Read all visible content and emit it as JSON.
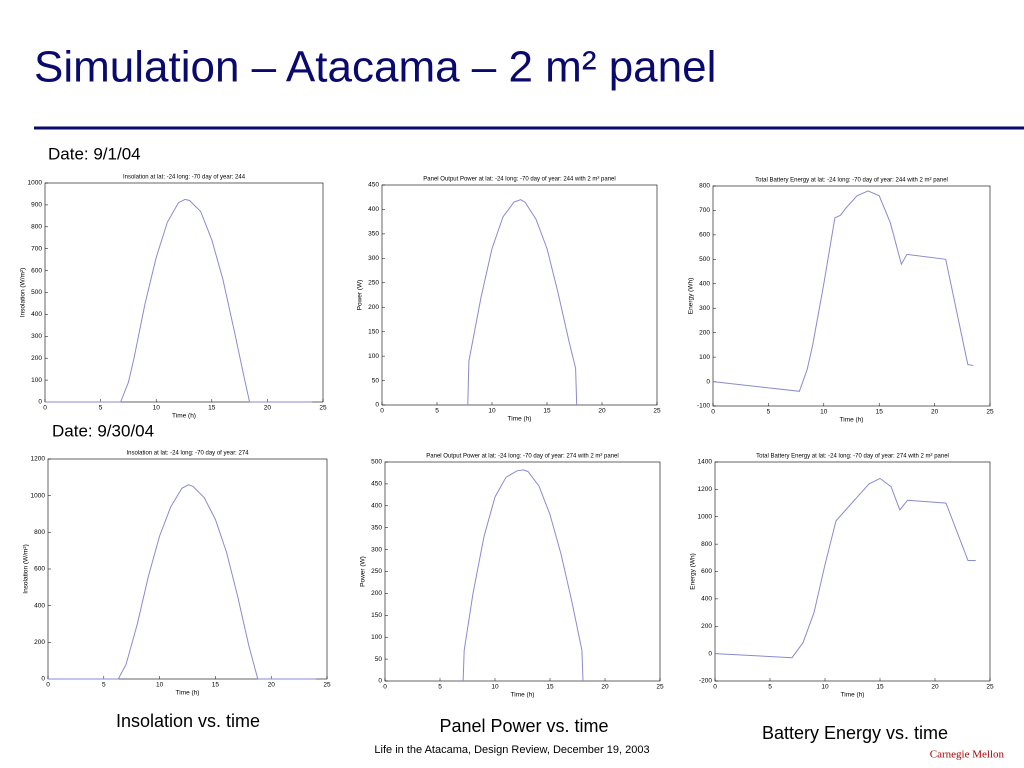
{
  "slide": {
    "title": "Simulation – Atacama – 2 m² panel",
    "dates": [
      "Date: 9/1/04",
      "Date: 9/30/04"
    ],
    "captions": [
      "Insolation vs. time",
      "Panel Power vs. time",
      "Battery Energy vs. time"
    ],
    "footer": "Life in the Atacama, Design Review, December 19, 2003",
    "logo": "Carnegie Mellon"
  },
  "chart_data": [
    {
      "type": "line",
      "title": "Insolation at lat: -24 long: -70 day of year: 244",
      "x_label": "Time (h)",
      "y_label": "Insolation (W/m²)",
      "xlim": [
        0,
        25
      ],
      "xticks": [
        0,
        5,
        10,
        15,
        20,
        25
      ],
      "ylim": [
        0,
        1000
      ],
      "yticks": [
        0,
        100,
        200,
        300,
        400,
        500,
        600,
        700,
        800,
        900,
        1000
      ],
      "series": [
        {
          "color": "#8a8ad0",
          "x": [
            0,
            6.8,
            7.5,
            8,
            9,
            10,
            11,
            12,
            12.6,
            13,
            14,
            15,
            16,
            17,
            18,
            18.4,
            24
          ],
          "values": [
            0,
            0,
            90,
            200,
            450,
            660,
            820,
            910,
            925,
            920,
            870,
            740,
            560,
            330,
            90,
            0,
            0
          ]
        }
      ]
    },
    {
      "type": "line",
      "title": "Panel Output Power at lat: -24 long: -70 day of year: 244 with 2 m² panel",
      "x_label": "Time (h)",
      "y_label": "Power (W)",
      "xlim": [
        0,
        25
      ],
      "xticks": [
        0,
        5,
        10,
        15,
        20,
        25
      ],
      "ylim": [
        0,
        450
      ],
      "yticks": [
        0,
        50,
        100,
        150,
        200,
        250,
        300,
        350,
        400,
        450
      ],
      "series": [
        {
          "color": "#8a8ad0",
          "x": [
            7.8,
            7.9,
            9,
            10,
            11,
            12,
            12.6,
            13,
            14,
            15,
            16,
            17,
            17.6,
            17.7
          ],
          "values": [
            0,
            90,
            220,
            320,
            385,
            415,
            420,
            415,
            380,
            320,
            230,
            130,
            75,
            0
          ]
        }
      ]
    },
    {
      "type": "line",
      "title": "Total Battery Energy at lat: -24 long: -70 day of year: 244 with 2 m² panel",
      "x_label": "Time (h)",
      "y_label": "Energy (Wh)",
      "xlim": [
        0,
        25
      ],
      "xticks": [
        0,
        5,
        10,
        15,
        20,
        25
      ],
      "ylim": [
        -100,
        800
      ],
      "yticks": [
        -100,
        0,
        100,
        200,
        300,
        400,
        500,
        600,
        700,
        800
      ],
      "series": [
        {
          "color": "#8a8ad0",
          "x": [
            0,
            7.8,
            8.5,
            9,
            10,
            11,
            11.5,
            12,
            13,
            14,
            15,
            16,
            17,
            17.5,
            21,
            23,
            23.5
          ],
          "values": [
            0,
            -40,
            50,
            150,
            400,
            670,
            680,
            710,
            760,
            780,
            760,
            650,
            480,
            520,
            500,
            70,
            65
          ]
        }
      ]
    },
    {
      "type": "line",
      "title": "Insolation at lat: -24 long: -70 day of year: 274",
      "x_label": "Time (h)",
      "y_label": "Insolation (W/m²)",
      "xlim": [
        0,
        25
      ],
      "xticks": [
        0,
        5,
        10,
        15,
        20,
        25
      ],
      "ylim": [
        0,
        1200
      ],
      "yticks": [
        0,
        200,
        400,
        600,
        800,
        1000,
        1200
      ],
      "series": [
        {
          "color": "#8a8ad0",
          "x": [
            0,
            6.3,
            7,
            8,
            9,
            10,
            11,
            12,
            12.6,
            13,
            14,
            15,
            16,
            17,
            18,
            18.8,
            24
          ],
          "values": [
            0,
            0,
            80,
            300,
            560,
            780,
            940,
            1040,
            1060,
            1050,
            990,
            870,
            690,
            450,
            180,
            0,
            0
          ]
        }
      ]
    },
    {
      "type": "line",
      "title": "Panel Output Power at lat: -24 long: -70 day of year: 274 with 2 m² panel",
      "x_label": "Time (h)",
      "y_label": "Power (W)",
      "xlim": [
        0,
        25
      ],
      "xticks": [
        0,
        5,
        10,
        15,
        20,
        25
      ],
      "ylim": [
        0,
        500
      ],
      "yticks": [
        0,
        50,
        100,
        150,
        200,
        250,
        300,
        350,
        400,
        450,
        500
      ],
      "series": [
        {
          "color": "#8a8ad0",
          "x": [
            7.1,
            7.2,
            8,
            9,
            10,
            11,
            12,
            12.6,
            13,
            14,
            15,
            16,
            17,
            17.9,
            18
          ],
          "values": [
            0,
            70,
            200,
            330,
            420,
            465,
            480,
            482,
            478,
            445,
            380,
            290,
            180,
            70,
            0
          ]
        }
      ]
    },
    {
      "type": "line",
      "title": "Total Battery Energy at lat: -24 long: -70 day of year: 274 with 2 m² panel",
      "x_label": "Time (h)",
      "y_label": "Energy (Wh)",
      "xlim": [
        0,
        25
      ],
      "xticks": [
        0,
        5,
        10,
        15,
        20,
        25
      ],
      "ylim": [
        -200,
        1400
      ],
      "yticks": [
        -200,
        0,
        200,
        400,
        600,
        800,
        1000,
        1200,
        1400
      ],
      "series": [
        {
          "color": "#8a8ad0",
          "x": [
            0,
            7,
            8,
            9,
            10,
            11,
            12,
            13,
            14,
            15,
            16,
            16.8,
            17.5,
            21,
            23,
            23.7
          ],
          "values": [
            0,
            -30,
            80,
            300,
            650,
            970,
            1060,
            1150,
            1240,
            1280,
            1220,
            1050,
            1120,
            1100,
            680,
            680
          ]
        }
      ]
    }
  ]
}
